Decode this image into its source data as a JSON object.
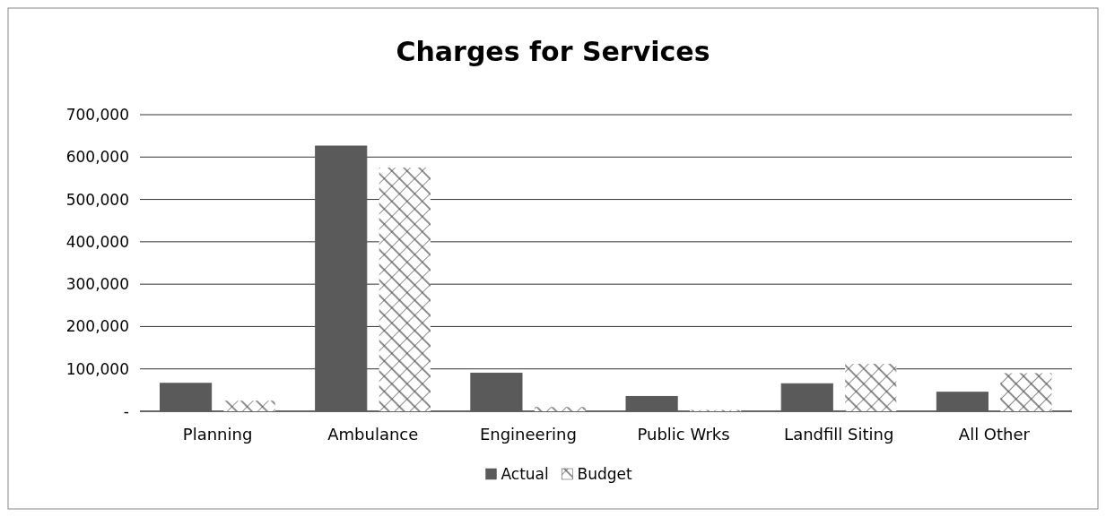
{
  "chart_data": {
    "type": "bar",
    "title": "Charges for Services",
    "categories": [
      "Planning",
      "Ambulance",
      "Engineering",
      "Public Wrks",
      "Landfill Siting",
      "All Other"
    ],
    "series": [
      {
        "name": "Actual",
        "color": "#5a5a5a",
        "values": [
          66000,
          626000,
          90000,
          35000,
          65000,
          45000
        ]
      },
      {
        "name": "Budget",
        "color": "#404040",
        "values": [
          25000,
          575000,
          10000,
          3000,
          112000,
          90000
        ]
      }
    ],
    "ylim": [
      0,
      700000
    ],
    "yticks": [
      {
        "value": 0,
        "label": "-"
      },
      {
        "value": 100000,
        "label": "100,000"
      },
      {
        "value": 200000,
        "label": "200,000"
      },
      {
        "value": 300000,
        "label": "300,000"
      },
      {
        "value": 400000,
        "label": "400,000"
      },
      {
        "value": 500000,
        "label": "500,000"
      },
      {
        "value": 600000,
        "label": "600,000"
      },
      {
        "value": 700000,
        "label": "700,000"
      }
    ],
    "grid": "y",
    "legend": "bottom"
  }
}
